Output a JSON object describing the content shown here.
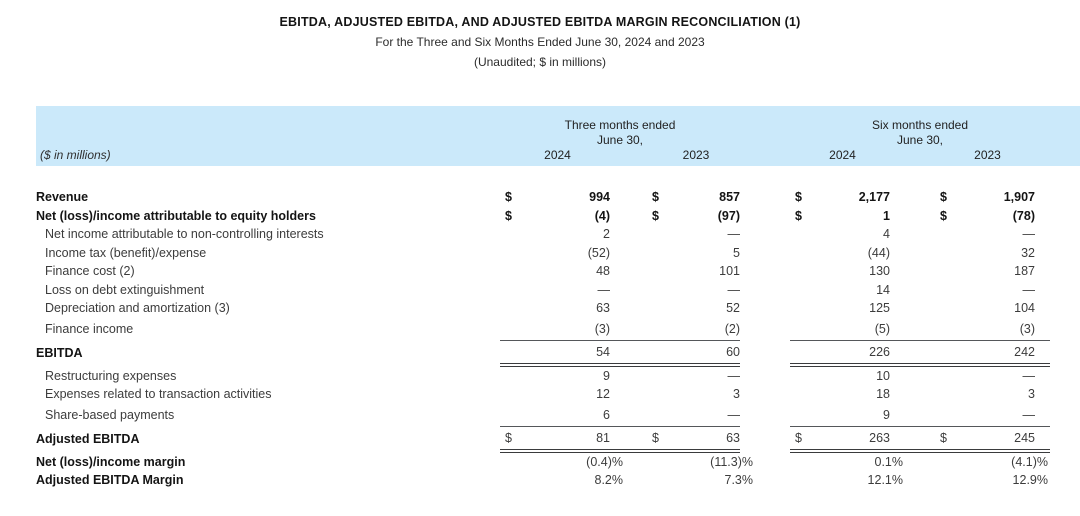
{
  "header": {
    "title": "EBITDA, ADJUSTED EBITDA, AND ADJUSTED EBITDA MARGIN RECONCILIATION (1)",
    "period": "For the Three and Six Months Ended June 30, 2024 and 2023",
    "note": "(Unaudited; $ in millions)"
  },
  "table": {
    "unit_label": "($ in millions)",
    "column_groups": [
      {
        "period": "Three months ended",
        "date_line": "June 30,",
        "years": [
          "2024",
          "2023"
        ]
      },
      {
        "period": "Six months ended",
        "date_line": "June 30,",
        "years": [
          "2024",
          "2023"
        ]
      }
    ],
    "rows": [
      {
        "label": "Revenue",
        "bold": true,
        "bold_values": true,
        "indent": false,
        "cells": [
          {
            "cur": "$",
            "val": "994"
          },
          {
            "cur": "$",
            "val": "857"
          },
          {
            "cur": "$",
            "val": "2,177"
          },
          {
            "cur": "$",
            "val": "1,907"
          }
        ]
      },
      {
        "label": "Net (loss)/income attributable to equity holders",
        "bold": true,
        "bold_values": true,
        "indent": false,
        "cells": [
          {
            "cur": "$",
            "val": "(4)"
          },
          {
            "cur": "$",
            "val": "(97)"
          },
          {
            "cur": "$",
            "val": "1"
          },
          {
            "cur": "$",
            "val": "(78)"
          }
        ]
      },
      {
        "label": "Net income attributable to non-controlling interests",
        "indent": true,
        "cells": [
          {
            "cur": "",
            "val": "2"
          },
          {
            "cur": "",
            "val": "—"
          },
          {
            "cur": "",
            "val": "4"
          },
          {
            "cur": "",
            "val": "—"
          }
        ]
      },
      {
        "label": "Income tax (benefit)/expense",
        "indent": true,
        "cells": [
          {
            "cur": "",
            "val": "(52)"
          },
          {
            "cur": "",
            "val": "5"
          },
          {
            "cur": "",
            "val": "(44)"
          },
          {
            "cur": "",
            "val": "32"
          }
        ]
      },
      {
        "label": "Finance cost (2)",
        "indent": true,
        "cells": [
          {
            "cur": "",
            "val": "48"
          },
          {
            "cur": "",
            "val": "101"
          },
          {
            "cur": "",
            "val": "130"
          },
          {
            "cur": "",
            "val": "187"
          }
        ]
      },
      {
        "label": "Loss on debt extinguishment",
        "indent": true,
        "cells": [
          {
            "cur": "",
            "val": "—"
          },
          {
            "cur": "",
            "val": "—"
          },
          {
            "cur": "",
            "val": "14"
          },
          {
            "cur": "",
            "val": "—"
          }
        ]
      },
      {
        "label": "Depreciation and amortization (3)",
        "indent": true,
        "cells": [
          {
            "cur": "",
            "val": "63"
          },
          {
            "cur": "",
            "val": "52"
          },
          {
            "cur": "",
            "val": "125"
          },
          {
            "cur": "",
            "val": "104"
          }
        ]
      },
      {
        "label": "Finance income",
        "indent": true,
        "tall": true,
        "cells": [
          {
            "cur": "",
            "val": "(3)"
          },
          {
            "cur": "",
            "val": "(2)"
          },
          {
            "cur": "",
            "val": "(5)"
          },
          {
            "cur": "",
            "val": "(3)"
          }
        ]
      },
      {
        "label": "EBITDA",
        "bold": true,
        "section": true,
        "rule_above": true,
        "double_below": true,
        "cells": [
          {
            "cur": "",
            "val": "54"
          },
          {
            "cur": "",
            "val": "60"
          },
          {
            "cur": "",
            "val": "226"
          },
          {
            "cur": "",
            "val": "242"
          }
        ]
      },
      {
        "label": "Restructuring expenses",
        "indent": true,
        "cells": [
          {
            "cur": "",
            "val": "9"
          },
          {
            "cur": "",
            "val": "—"
          },
          {
            "cur": "",
            "val": "10"
          },
          {
            "cur": "",
            "val": "—"
          }
        ]
      },
      {
        "label": "Expenses related to transaction activities",
        "indent": true,
        "cells": [
          {
            "cur": "",
            "val": "12"
          },
          {
            "cur": "",
            "val": "3"
          },
          {
            "cur": "",
            "val": "18"
          },
          {
            "cur": "",
            "val": "3"
          }
        ]
      },
      {
        "label": "Share-based payments",
        "indent": true,
        "tall": true,
        "cells": [
          {
            "cur": "",
            "val": "6"
          },
          {
            "cur": "",
            "val": "—"
          },
          {
            "cur": "",
            "val": "9"
          },
          {
            "cur": "",
            "val": "—"
          }
        ]
      },
      {
        "label": "Adjusted EBITDA",
        "bold": true,
        "section": true,
        "rule_above": true,
        "double_below": true,
        "cells": [
          {
            "cur": "$",
            "val": "81"
          },
          {
            "cur": "$",
            "val": "63"
          },
          {
            "cur": "$",
            "val": "263"
          },
          {
            "cur": "$",
            "val": "245"
          }
        ]
      },
      {
        "label": "Net (loss)/income margin",
        "bold": true,
        "percent": true,
        "cells": [
          {
            "cur": "",
            "val": "(0.4)%"
          },
          {
            "cur": "",
            "val": "(11.3)%"
          },
          {
            "cur": "",
            "val": "0.1%"
          },
          {
            "cur": "",
            "val": "(4.1)%"
          }
        ]
      },
      {
        "label": "Adjusted EBITDA Margin",
        "bold": true,
        "percent": true,
        "cells": [
          {
            "cur": "",
            "val": "8.2%"
          },
          {
            "cur": "",
            "val": "7.3%"
          },
          {
            "cur": "",
            "val": "12.1%"
          },
          {
            "cur": "",
            "val": "12.9%"
          }
        ]
      }
    ]
  },
  "colors": {
    "header_band": "#cbe9fa",
    "rule": "#55575a",
    "rule_dark": "#3a3b3d",
    "text": "#3c3c3c",
    "bold_text": "#141414"
  }
}
